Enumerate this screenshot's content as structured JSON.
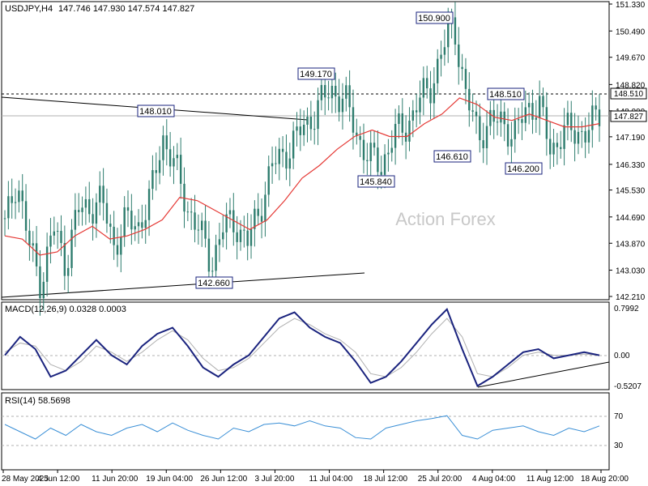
{
  "header": {
    "symbol": "USDJPY,H4",
    "ohlc": "147.746 147.930 147.574 147.827"
  },
  "watermark": "Action Forex",
  "macd": {
    "title": "MACD(12,26,9) 0.0328 0.0003"
  },
  "rsi": {
    "title": "RSI(14) 58.5698"
  },
  "colors": {
    "candle": "#2e7d6e",
    "ma": "#e53935",
    "macd": "#1a237e",
    "signal": "#b0b0b0",
    "rsi": "#3a8fd6",
    "label_border": "#1a237e"
  },
  "chart_data": [
    {
      "type": "candlestick",
      "price_axis": [
        "151.330",
        "150.490",
        "149.670",
        "148.820",
        "148.000",
        "147.190",
        "146.330",
        "145.530",
        "144.690",
        "143.870",
        "143.030",
        "142.210"
      ],
      "ylim": [
        142.21,
        151.33
      ],
      "current_price": "147.827",
      "resistance_level": "148.510",
      "x_labels": [
        "28 May 2025",
        "4 Jun 12:00",
        "11 Jun 20:00",
        "19 Jun 04:00",
        "26 Jun 12:00",
        "3 Jul 20:00",
        "11 Jul 04:00",
        "18 Jul 12:00",
        "25 Jul 20:00",
        "4 Aug 04:00",
        "11 Aug 12:00",
        "18 Aug 20:00"
      ],
      "annotations": [
        {
          "text": "150.900",
          "price": 150.9,
          "x": "25 Jul 20:00"
        },
        {
          "text": "149.170",
          "price": 149.17,
          "x": "11 Jul 04:00"
        },
        {
          "text": "148.010",
          "price": 148.01,
          "x": "19 Jun 04:00"
        },
        {
          "text": "148.510",
          "price": 148.51,
          "x": "11 Aug 12:00"
        },
        {
          "text": "146.610",
          "price": 146.61,
          "x": "4 Aug 04:00"
        },
        {
          "text": "146.200",
          "price": 146.2,
          "x": "11 Aug 12:00"
        },
        {
          "text": "145.840",
          "price": 145.84,
          "x": "18 Jul 12:00"
        },
        {
          "text": "142.660",
          "price": 142.66,
          "x": "26 Jun 12:00"
        }
      ],
      "close_path": [
        {
          "x": "28 May 2025",
          "y": 144.4
        },
        {
          "x": "29 May",
          "y": 145.9
        },
        {
          "x": "30 May",
          "y": 143.8
        },
        {
          "x": "2 Jun",
          "y": 142.6
        },
        {
          "x": "3 Jun",
          "y": 144.4
        },
        {
          "x": "4 Jun 12:00",
          "y": 143.2
        },
        {
          "x": "6 Jun",
          "y": 144.9
        },
        {
          "x": "9 Jun",
          "y": 145.0
        },
        {
          "x": "10 Jun",
          "y": 145.2
        },
        {
          "x": "11 Jun 20:00",
          "y": 143.8
        },
        {
          "x": "13 Jun",
          "y": 144.6
        },
        {
          "x": "16 Jun",
          "y": 144.4
        },
        {
          "x": "18 Jun",
          "y": 145.3
        },
        {
          "x": "19 Jun 04:00",
          "y": 147.2
        },
        {
          "x": "20 Jun",
          "y": 146.3
        },
        {
          "x": "23 Jun",
          "y": 145.0
        },
        {
          "x": "25 Jun",
          "y": 144.3
        },
        {
          "x": "26 Jun 12:00",
          "y": 143.2
        },
        {
          "x": "27 Jun",
          "y": 144.4
        },
        {
          "x": "30 Jun",
          "y": 144.5
        },
        {
          "x": "2 Jul",
          "y": 143.9
        },
        {
          "x": "3 Jul 20:00",
          "y": 144.9
        },
        {
          "x": "7 Jul",
          "y": 146.3
        },
        {
          "x": "9 Jul",
          "y": 146.6
        },
        {
          "x": "10 Jul",
          "y": 147.2
        },
        {
          "x": "11 Jul 04:00",
          "y": 147.6
        },
        {
          "x": "14 Jul",
          "y": 148.3
        },
        {
          "x": "15 Jul",
          "y": 148.6
        },
        {
          "x": "17 Jul",
          "y": 148.4
        },
        {
          "x": "18 Jul 12:00",
          "y": 147.2
        },
        {
          "x": "21 Jul",
          "y": 146.6
        },
        {
          "x": "22 Jul",
          "y": 146.2
        },
        {
          "x": "23 Jul",
          "y": 147.3
        },
        {
          "x": "24 Jul",
          "y": 147.4
        },
        {
          "x": "25 Jul 20:00",
          "y": 148.3
        },
        {
          "x": "28 Jul",
          "y": 148.6
        },
        {
          "x": "30 Jul",
          "y": 149.9
        },
        {
          "x": "31 Jul",
          "y": 150.7
        },
        {
          "x": "1 Aug",
          "y": 148.5
        },
        {
          "x": "4 Aug 04:00",
          "y": 147.2
        },
        {
          "x": "5 Aug",
          "y": 147.7
        },
        {
          "x": "6 Aug",
          "y": 147.6
        },
        {
          "x": "8 Aug",
          "y": 147.3
        },
        {
          "x": "11 Aug 12:00",
          "y": 148.0
        },
        {
          "x": "12 Aug",
          "y": 148.3
        },
        {
          "x": "13 Aug",
          "y": 146.6
        },
        {
          "x": "14 Aug",
          "y": 147.5
        },
        {
          "x": "15 Aug",
          "y": 147.2
        },
        {
          "x": "18 Aug 20:00",
          "y": 147.5
        },
        {
          "x": "19 Aug",
          "y": 147.8
        }
      ],
      "ma_path": [
        {
          "x": "28 May 2025",
          "y": 144.1
        },
        {
          "x": "30 May",
          "y": 144.0
        },
        {
          "x": "3 Jun",
          "y": 143.5
        },
        {
          "x": "4 Jun 12:00",
          "y": 143.6
        },
        {
          "x": "6 Jun",
          "y": 144.1
        },
        {
          "x": "10 Jun",
          "y": 144.4
        },
        {
          "x": "11 Jun 20:00",
          "y": 144.0
        },
        {
          "x": "13 Jun",
          "y": 144.1
        },
        {
          "x": "16 Jun",
          "y": 144.3
        },
        {
          "x": "18 Jun",
          "y": 144.6
        },
        {
          "x": "19 Jun 04:00",
          "y": 145.3
        },
        {
          "x": "23 Jun",
          "y": 145.2
        },
        {
          "x": "25 Jun",
          "y": 144.9
        },
        {
          "x": "27 Jun",
          "y": 144.6
        },
        {
          "x": "2 Jul",
          "y": 144.3
        },
        {
          "x": "3 Jul 20:00",
          "y": 144.6
        },
        {
          "x": "7 Jul",
          "y": 145.2
        },
        {
          "x": "10 Jul",
          "y": 145.9
        },
        {
          "x": "11 Jul 04:00",
          "y": 146.3
        },
        {
          "x": "14 Jul",
          "y": 146.8
        },
        {
          "x": "17 Jul",
          "y": 147.2
        },
        {
          "x": "18 Jul 12:00",
          "y": 147.4
        },
        {
          "x": "21 Jul",
          "y": 147.2
        },
        {
          "x": "23 Jul",
          "y": 147.2
        },
        {
          "x": "25 Jul 20:00",
          "y": 147.6
        },
        {
          "x": "28 Jul",
          "y": 147.9
        },
        {
          "x": "31 Jul",
          "y": 148.4
        },
        {
          "x": "4 Aug 04:00",
          "y": 148.2
        },
        {
          "x": "6 Aug",
          "y": 147.8
        },
        {
          "x": "8 Aug",
          "y": 147.7
        },
        {
          "x": "11 Aug 12:00",
          "y": 147.9
        },
        {
          "x": "13 Aug",
          "y": 147.7
        },
        {
          "x": "15 Aug",
          "y": 147.5
        },
        {
          "x": "18 Aug 20:00",
          "y": 147.5
        },
        {
          "x": "19 Aug",
          "y": 147.6
        }
      ]
    },
    {
      "type": "line",
      "name": "MACD(12,26,9)",
      "axis_labels": [
        "0.7992",
        "0.00",
        "-0.5207"
      ],
      "ylim": [
        -0.52,
        0.8
      ],
      "current_value": "0.00",
      "series": [
        {
          "values": [
            0.0,
            0.3,
            0.1,
            -0.35,
            -0.25,
            0.0,
            0.25,
            0.0,
            -0.15,
            0.15,
            0.35,
            0.45,
            0.15,
            -0.2,
            -0.35,
            -0.15,
            0.0,
            0.3,
            0.6,
            0.7,
            0.45,
            0.3,
            0.2,
            -0.1,
            -0.45,
            -0.35,
            -0.1,
            0.2,
            0.5,
            0.75,
            0.1,
            -0.5,
            -0.35,
            -0.15,
            0.05,
            0.1,
            -0.05,
            0.0,
            0.05,
            0.0
          ]
        },
        {
          "values": [
            0.05,
            0.2,
            0.15,
            -0.15,
            -0.25,
            -0.1,
            0.15,
            0.05,
            -0.1,
            0.05,
            0.25,
            0.4,
            0.25,
            -0.05,
            -0.25,
            -0.2,
            -0.05,
            0.2,
            0.45,
            0.6,
            0.5,
            0.35,
            0.25,
            0.05,
            -0.3,
            -0.35,
            -0.2,
            0.05,
            0.35,
            0.6,
            0.3,
            -0.3,
            -0.35,
            -0.2,
            0.0,
            0.05,
            0.0,
            0.0,
            0.02,
            0.0
          ]
        }
      ],
      "trendline": [
        {
          "x": "4 Aug 04:00",
          "y": -0.5
        },
        {
          "x": "19 Aug",
          "y": -0.08
        }
      ]
    },
    {
      "type": "line",
      "name": "RSI(14)",
      "axis_labels": [
        "70",
        "30"
      ],
      "ylim": [
        0,
        100
      ],
      "values": [
        60,
        50,
        40,
        55,
        45,
        60,
        50,
        45,
        55,
        60,
        50,
        62,
        52,
        45,
        40,
        55,
        50,
        60,
        62,
        58,
        65,
        58,
        55,
        42,
        40,
        55,
        60,
        65,
        68,
        72,
        45,
        40,
        52,
        55,
        58,
        50,
        45,
        55,
        50,
        58
      ]
    }
  ]
}
